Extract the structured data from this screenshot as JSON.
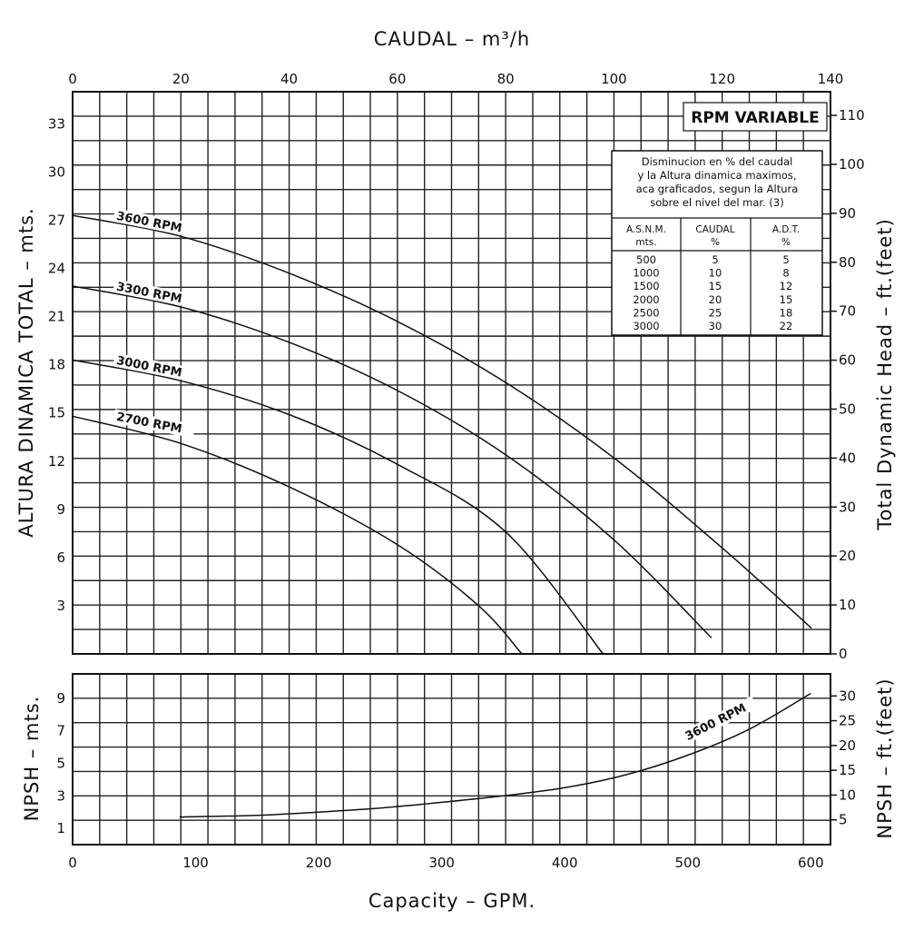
{
  "chart_data": [
    {
      "type": "line",
      "title": "RPM VARIABLE",
      "xlabel_top": "CAUDAL – m³/h",
      "xlabel_bottom": "Capacity – GPM.",
      "ylabel_left": "ALTURA DINAMICA TOTAL – mts.",
      "ylabel_right": "Total Dynamic Head – ft.(feet)",
      "x_top_ticks": [
        "0",
        "20",
        "40",
        "60",
        "80",
        "100",
        "120",
        "140"
      ],
      "x_top_lim": [
        0,
        140
      ],
      "ylim": [
        0,
        35
      ],
      "y_left_ticks": [
        "3",
        "6",
        "9",
        "12",
        "15",
        "18",
        "21",
        "24",
        "27",
        "30",
        "33"
      ],
      "y_right_ticks": [
        "0",
        "10",
        "20",
        "30",
        "40",
        "50",
        "60",
        "70",
        "80",
        "90",
        "100",
        "110"
      ],
      "grid": true,
      "series": [
        {
          "name": "3600 RPM",
          "label": "3600 RPM",
          "x": [
            0,
            20,
            40,
            60,
            80,
            100,
            120,
            136.5
          ],
          "y": [
            27.3,
            26.0,
            23.7,
            20.7,
            16.9,
            12.2,
            6.6,
            1.6
          ]
        },
        {
          "name": "3300 RPM",
          "label": "3300 RPM",
          "x": [
            0,
            20,
            40,
            60,
            80,
            100,
            118
          ],
          "y": [
            22.9,
            21.6,
            19.4,
            16.4,
            12.4,
            7.1,
            1.0
          ]
        },
        {
          "name": "3000 RPM",
          "label": "3000 RPM",
          "x": [
            0,
            20,
            40,
            60,
            80,
            98
          ],
          "y": [
            18.3,
            17.0,
            14.9,
            11.8,
            7.6,
            0.0
          ]
        },
        {
          "name": "2700 RPM",
          "label": "2700 RPM",
          "x": [
            0,
            20,
            40,
            60,
            75,
            83
          ],
          "y": [
            14.8,
            13.1,
            10.4,
            6.8,
            3.0,
            0.0
          ]
        }
      ],
      "table": {
        "note": "Disminucion en % del caudal y la Altura dinamica maximos, aca graficados, segun la Altura sobre el nivel del mar. (3)",
        "note_lines": [
          "Disminucion en % del caudal",
          "y la Altura dinamica maximos,",
          "aca graficados, segun la Altura",
          "sobre el nivel del mar. (3)"
        ],
        "columns": [
          {
            "label": "A.S.N.M.",
            "sub": "mts."
          },
          {
            "label": "CAUDAL",
            "sub": "%"
          },
          {
            "label": "A.D.T.",
            "sub": "%"
          }
        ],
        "rows": [
          [
            "500",
            "5",
            "5"
          ],
          [
            "1000",
            "10",
            "8"
          ],
          [
            "1500",
            "15",
            "12"
          ],
          [
            "2000",
            "20",
            "15"
          ],
          [
            "2500",
            "25",
            "18"
          ],
          [
            "3000",
            "30",
            "22"
          ]
        ]
      }
    },
    {
      "type": "line",
      "xlabel": "Capacity – GPM.",
      "ylabel_left": "NPSH – mts.",
      "ylabel_right": "NPSH – ft.(feet)",
      "x_ticks": [
        "0",
        "100",
        "200",
        "300",
        "400",
        "500",
        "600"
      ],
      "xlim": [
        0,
        616
      ],
      "ylim": [
        0,
        10.5
      ],
      "y_left_ticks": [
        "1",
        "3",
        "5",
        "7",
        "9"
      ],
      "y_right_ticks": [
        "5",
        "10",
        "15",
        "20",
        "25",
        "30"
      ],
      "grid": true,
      "series": [
        {
          "name": "3600 RPM",
          "label": "3600 RPM",
          "x": [
            87,
            150,
            200,
            250,
            300,
            350,
            400,
            450,
            500,
            550,
            600
          ],
          "y": [
            1.7,
            1.8,
            2.0,
            2.25,
            2.6,
            3.0,
            3.5,
            4.3,
            5.5,
            7.1,
            9.3
          ]
        }
      ]
    }
  ]
}
